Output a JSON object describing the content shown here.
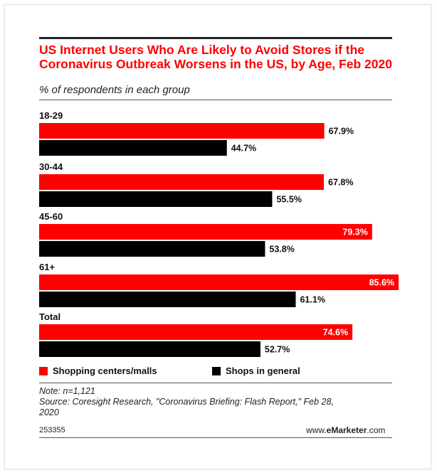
{
  "chart_data": {
    "type": "bar",
    "orientation": "horizontal",
    "title": "US Internet Users Who Are Likely to Avoid Stores if the Coronavirus Outbreak Worsens in the US, by Age, Feb 2020",
    "subtitle": "% of respondents in each group",
    "categories": [
      "18-29",
      "30-44",
      "45-60",
      "61+",
      "Total"
    ],
    "series": [
      {
        "name": "Shopping centers/malls",
        "values": [
          67.9,
          67.8,
          79.3,
          85.6,
          74.6
        ],
        "labels": [
          "67.9%",
          "67.8%",
          "79.3%",
          "85.6%",
          "74.6%"
        ],
        "color": "#ff0000"
      },
      {
        "name": "Shops in general",
        "values": [
          44.7,
          55.5,
          53.8,
          61.1,
          52.7
        ],
        "labels": [
          "44.7%",
          "55.5%",
          "53.8%",
          "61.1%",
          "52.7%"
        ],
        "color": "#000000"
      }
    ],
    "xlim": [
      0,
      100
    ],
    "grid": false,
    "legend": "bottom-left"
  },
  "legend": {
    "item1": "Shopping centers/malls",
    "item2": "Shops in general"
  },
  "note": "Note: n=1,121",
  "source_line1": "Source: Coresight Research, \"Coronavirus Briefing: Flash Report,\" Feb 28,",
  "source_line2": "2020",
  "chart_id": "253355",
  "brand_prefix": "www.",
  "brand_bold": "eMarketer",
  "brand_suffix": ".com",
  "colors": {
    "accent": "#ff0000",
    "dark": "#000000"
  }
}
